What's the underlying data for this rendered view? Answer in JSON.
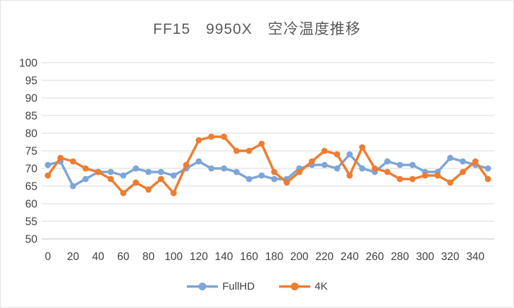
{
  "chart_data": {
    "type": "line",
    "title": "FF15　9950X　空冷温度推移",
    "xlabel": "",
    "ylabel": "",
    "x": [
      0,
      10,
      20,
      30,
      40,
      50,
      60,
      70,
      80,
      90,
      100,
      110,
      120,
      130,
      140,
      150,
      160,
      170,
      180,
      190,
      200,
      210,
      220,
      230,
      240,
      250,
      260,
      270,
      280,
      290,
      300,
      310,
      320,
      330,
      340,
      350
    ],
    "series": [
      {
        "name": "FullHD",
        "color": "#7DA5D8",
        "values": [
          71,
          72,
          65,
          67,
          69,
          69,
          68,
          70,
          69,
          69,
          68,
          70,
          72,
          70,
          70,
          69,
          67,
          68,
          67,
          67,
          70,
          71,
          71,
          70,
          74,
          70,
          69,
          72,
          71,
          71,
          69,
          69,
          73,
          72,
          71,
          70
        ]
      },
      {
        "name": "4K",
        "color": "#ED7D31",
        "values": [
          68,
          73,
          72,
          70,
          69,
          67,
          63,
          66,
          64,
          67,
          63,
          71,
          78,
          79,
          79,
          75,
          75,
          77,
          69,
          66,
          69,
          72,
          75,
          74,
          68,
          76,
          70,
          69,
          67,
          67,
          68,
          68,
          66,
          69,
          72,
          67
        ]
      }
    ],
    "ylim": [
      50,
      100
    ],
    "y_ticks": [
      100,
      95,
      90,
      85,
      80,
      75,
      70,
      65,
      60,
      55,
      50
    ],
    "x_tick_labels": [
      0,
      20,
      40,
      60,
      80,
      100,
      120,
      140,
      160,
      180,
      200,
      220,
      240,
      260,
      280,
      300,
      320,
      340
    ],
    "grid": "horizontal",
    "legend_position": "bottom"
  },
  "colors": {
    "background": "#ffffff",
    "gridline": "#d9d9d9",
    "axis_line": "#bfbfbf",
    "tick_label": "#404040",
    "title": "#595959"
  }
}
